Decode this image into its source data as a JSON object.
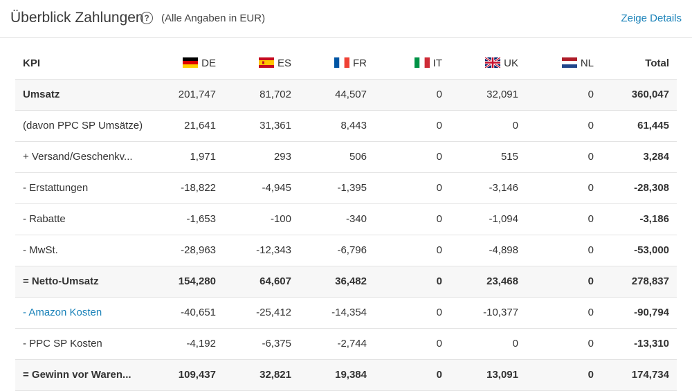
{
  "header": {
    "title": "Überblick Zahlungen",
    "help_icon": "?",
    "subtitle": "(Alle Angaben in EUR)",
    "details_link": "Zeige Details"
  },
  "table": {
    "columns": [
      "KPI",
      "DE",
      "ES",
      "FR",
      "IT",
      "UK",
      "NL",
      "Total"
    ],
    "rows": [
      {
        "label": "Umsatz",
        "values": [
          "201,747",
          "81,702",
          "44,507",
          "0",
          "32,091",
          "0",
          "360,047"
        ]
      },
      {
        "label": "(davon PPC SP Umsätze)",
        "values": [
          "21,641",
          "31,361",
          "8,443",
          "0",
          "0",
          "0",
          "61,445"
        ]
      },
      {
        "label": "+ Versand/Geschenkv...",
        "values": [
          "1,971",
          "293",
          "506",
          "0",
          "515",
          "0",
          "3,284"
        ]
      },
      {
        "label": "- Erstattungen",
        "values": [
          "-18,822",
          "-4,945",
          "-1,395",
          "0",
          "-3,146",
          "0",
          "-28,308"
        ]
      },
      {
        "label": "- Rabatte",
        "values": [
          "-1,653",
          "-100",
          "-340",
          "0",
          "-1,094",
          "0",
          "-3,186"
        ]
      },
      {
        "label": "- MwSt.",
        "values": [
          "-28,963",
          "-12,343",
          "-6,796",
          "0",
          "-4,898",
          "0",
          "-53,000"
        ]
      },
      {
        "label": "= Netto-Umsatz",
        "values": [
          "154,280",
          "64,607",
          "36,482",
          "0",
          "23,468",
          "0",
          "278,837"
        ]
      },
      {
        "label": "- Amazon Kosten",
        "values": [
          "-40,651",
          "-25,412",
          "-14,354",
          "0",
          "-10,377",
          "0",
          "-90,794"
        ]
      },
      {
        "label": "- PPC SP Kosten",
        "values": [
          "-4,192",
          "-6,375",
          "-2,744",
          "0",
          "0",
          "0",
          "-13,310"
        ]
      },
      {
        "label": "= Gewinn vor Waren...",
        "values": [
          "109,437",
          "32,821",
          "19,384",
          "0",
          "13,091",
          "0",
          "174,734"
        ]
      }
    ]
  },
  "colors": {
    "link": "#1a82b9",
    "shade": "#f7f7f7"
  }
}
